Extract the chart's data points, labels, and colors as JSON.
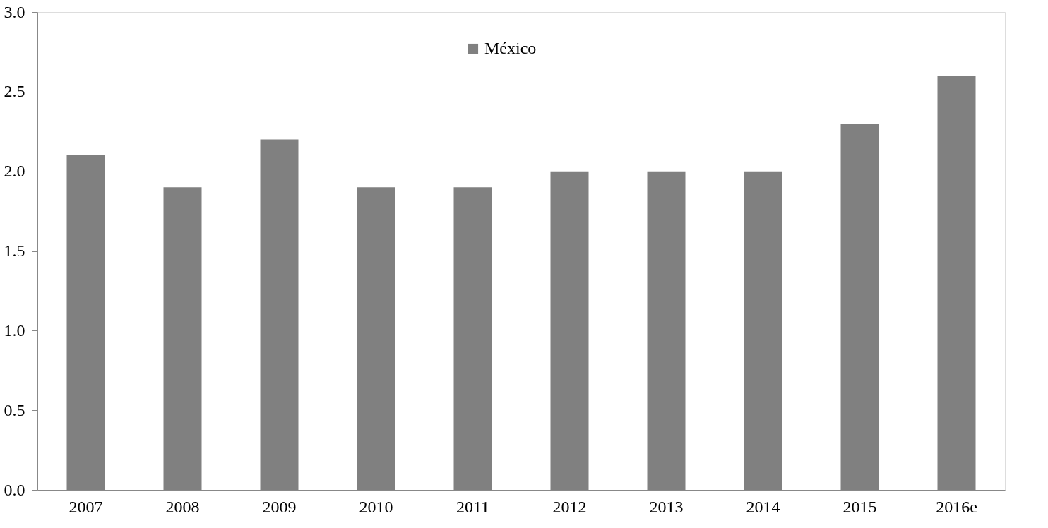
{
  "chart_data": {
    "type": "bar",
    "categories": [
      "2007",
      "2008",
      "2009",
      "2010",
      "2011",
      "2012",
      "2013",
      "2014",
      "2015",
      "2016e"
    ],
    "series": [
      {
        "name": "México",
        "color": "#808080",
        "values": [
          2.1,
          1.9,
          2.2,
          1.9,
          1.9,
          2.0,
          2.0,
          2.0,
          2.3,
          2.6
        ]
      }
    ],
    "ylim": [
      0,
      3
    ],
    "yticks": [
      {
        "value": 0,
        "label": "0.0"
      },
      {
        "value": 0.5,
        "label": "0.5"
      },
      {
        "value": 1,
        "label": "1.0"
      },
      {
        "value": 1.5,
        "label": "1.5"
      },
      {
        "value": 2,
        "label": "2.0"
      },
      {
        "value": 2.5,
        "label": "2.5"
      },
      {
        "value": 3,
        "label": "3.0"
      }
    ],
    "grid": false,
    "legend": "top"
  }
}
